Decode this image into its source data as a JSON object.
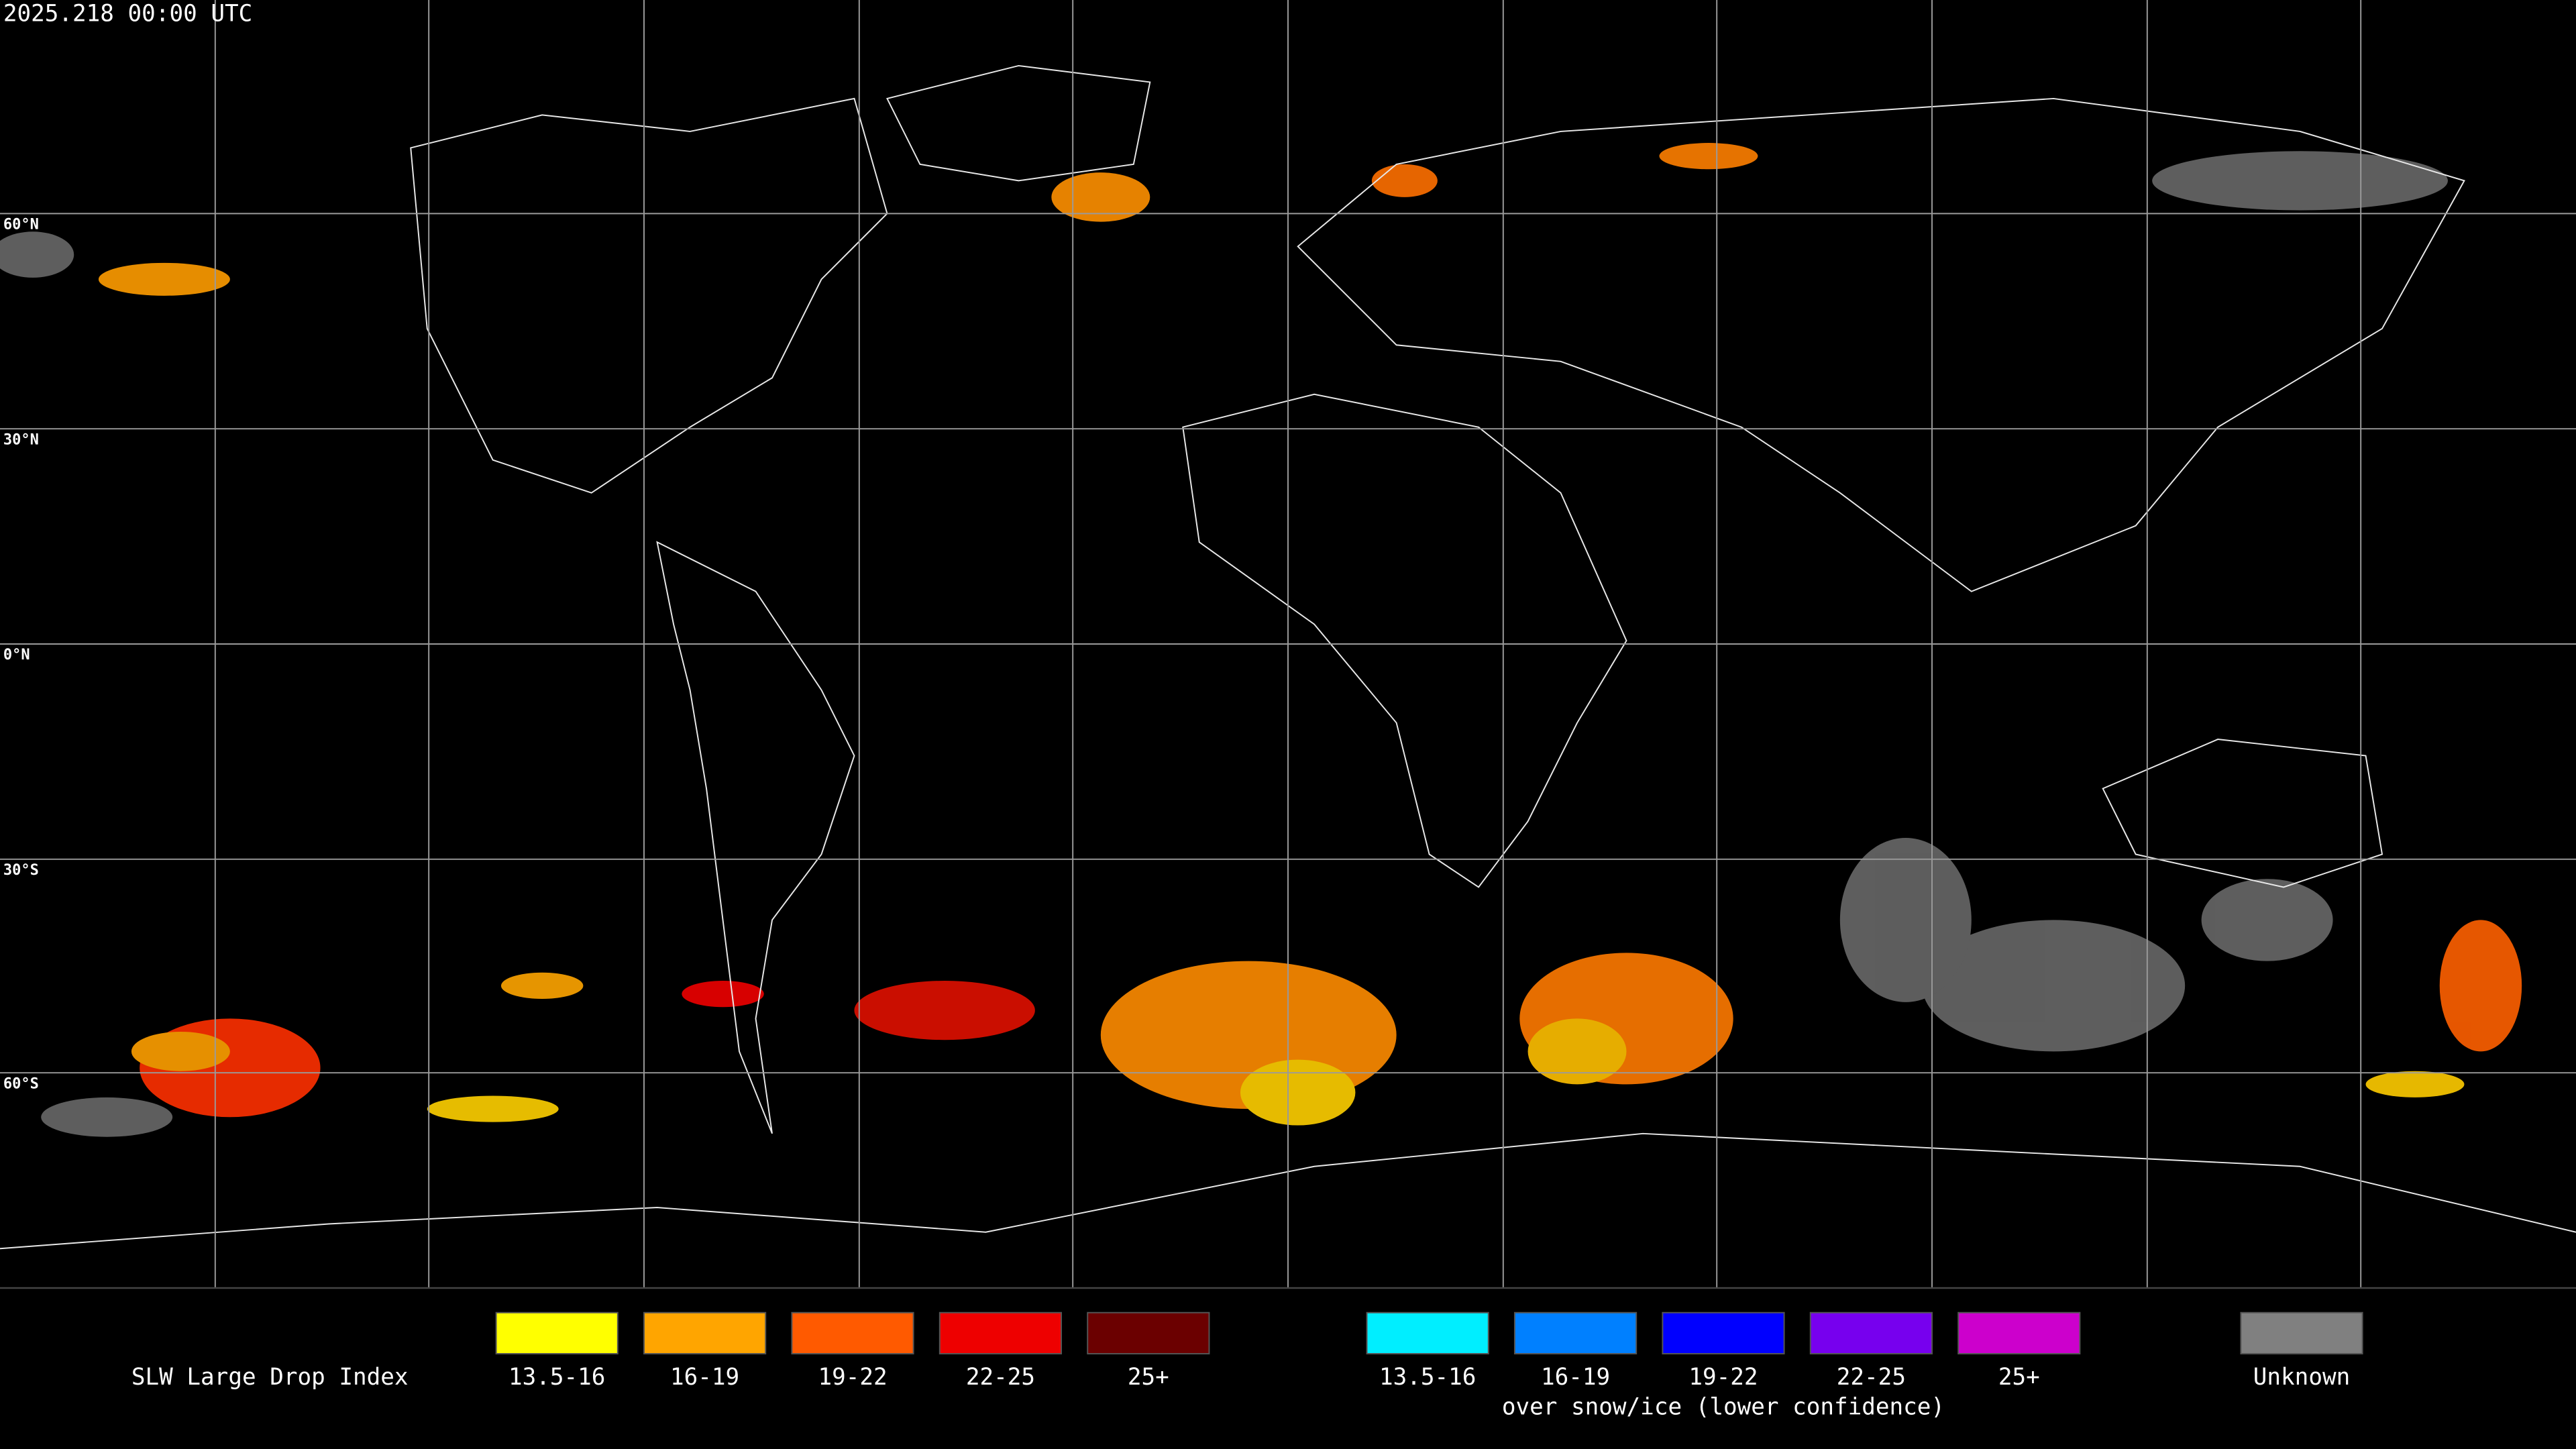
{
  "header": {
    "timestamp": "2025.218 00:00 UTC"
  },
  "map": {
    "latitude_labels": [
      "60°N",
      "30°N",
      "0°N",
      "30°S",
      "60°S"
    ]
  },
  "legend": {
    "title": "SLW Large Drop Index",
    "liquid": [
      {
        "label": "13.5-16",
        "color": "#ffff00"
      },
      {
        "label": "16-19",
        "color": "#ffa500"
      },
      {
        "label": "19-22",
        "color": "#ff5a00"
      },
      {
        "label": "22-25",
        "color": "#ee0000"
      },
      {
        "label": "25+",
        "color": "#6b0000"
      }
    ],
    "snow_ice": {
      "caption": "over snow/ice (lower confidence)",
      "items": [
        {
          "label": "13.5-16",
          "color": "#00eeff"
        },
        {
          "label": "16-19",
          "color": "#0080ff"
        },
        {
          "label": "19-22",
          "color": "#0000ff"
        },
        {
          "label": "22-25",
          "color": "#7700ee"
        },
        {
          "label": "25+",
          "color": "#cc00cc"
        }
      ]
    },
    "unknown": {
      "label": "Unknown",
      "color": "#808080"
    }
  }
}
